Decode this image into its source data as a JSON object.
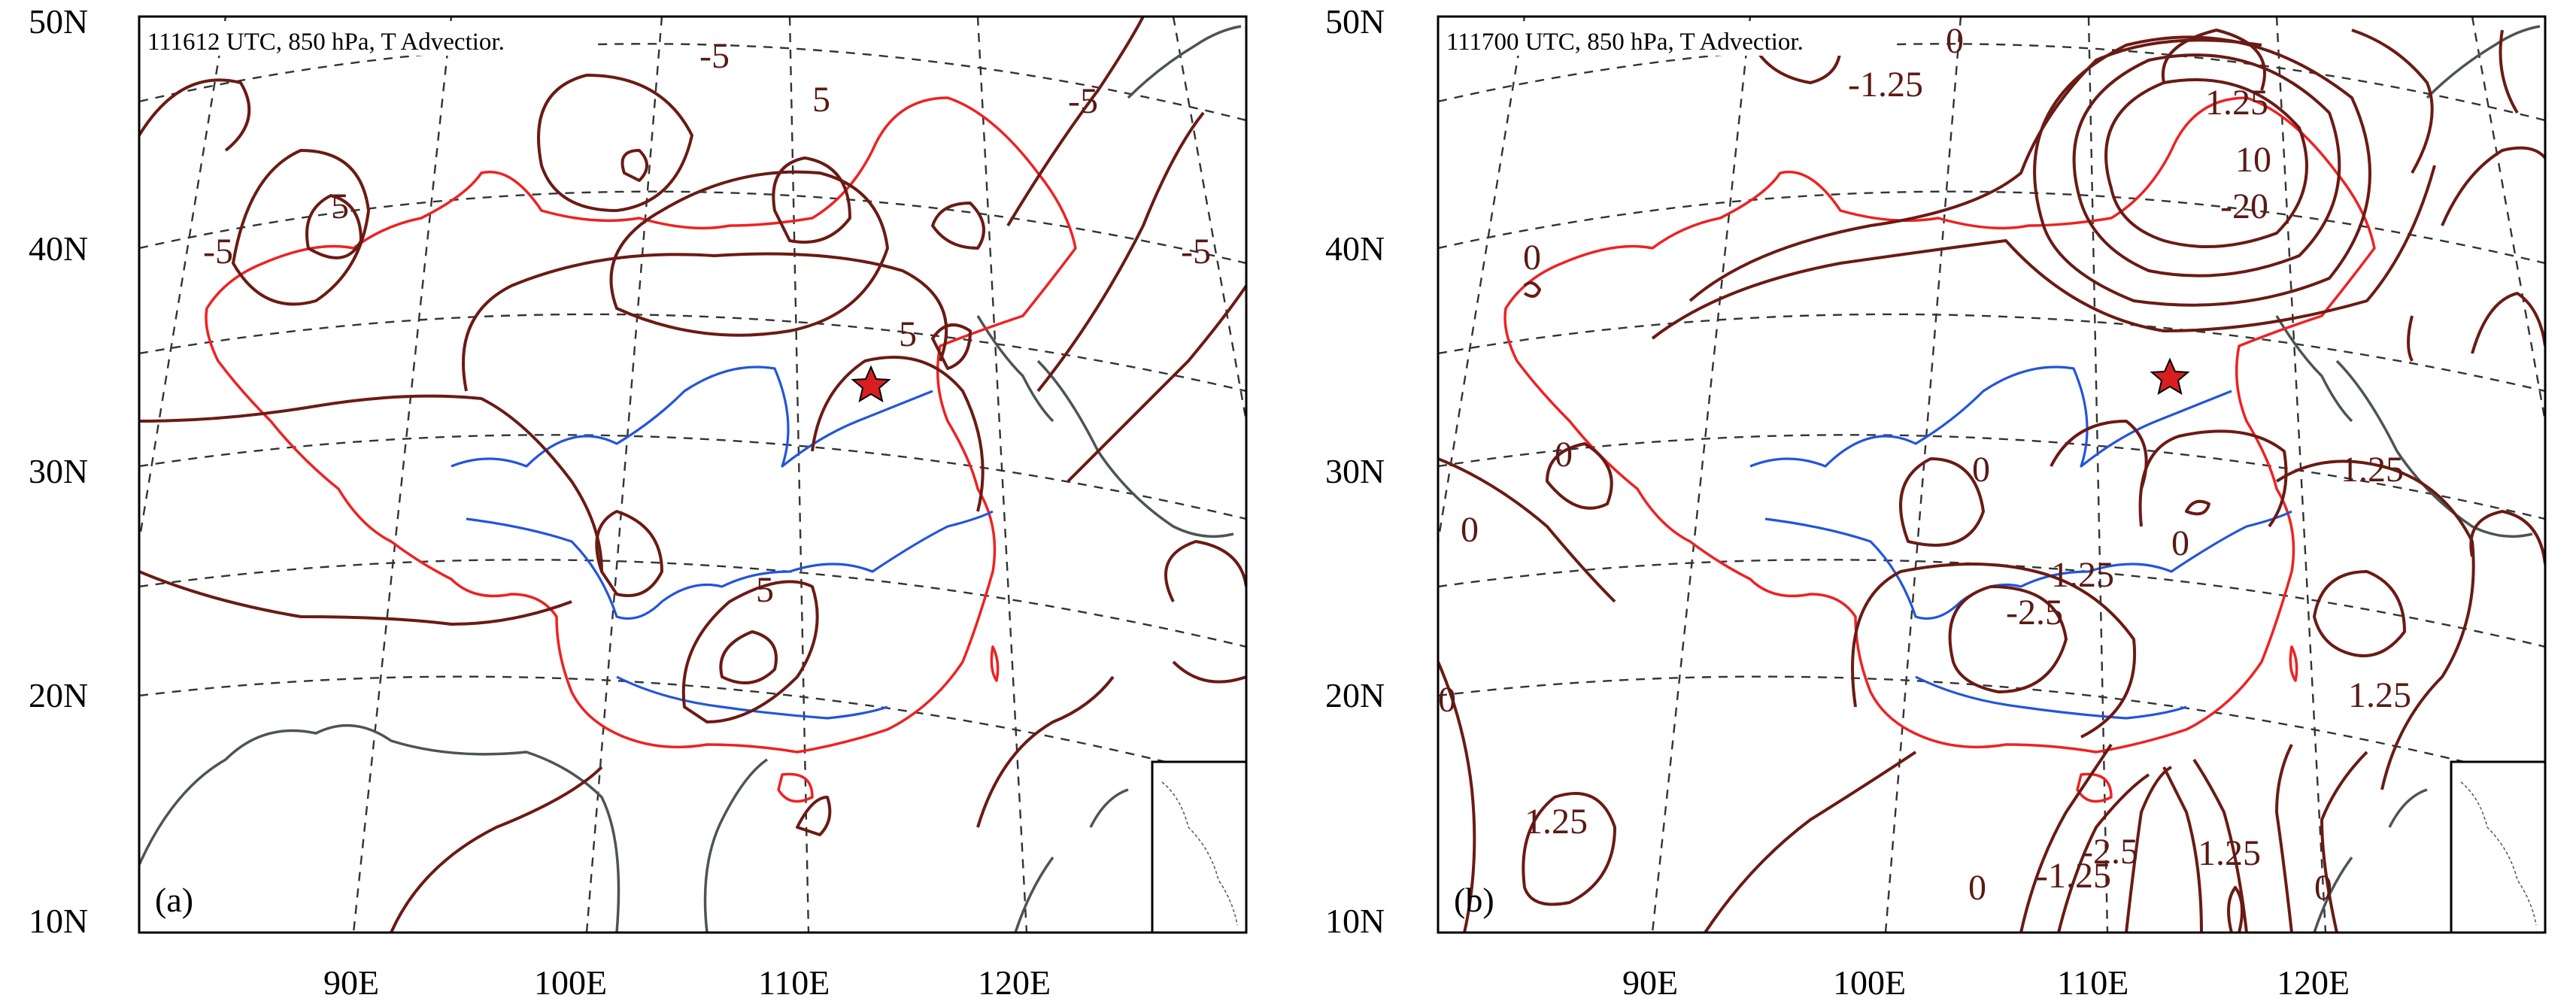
{
  "lat_labels": [
    "50N",
    "40N",
    "30N",
    "20N",
    "10N"
  ],
  "lon_labels": [
    "90E",
    "100E",
    "110E",
    "120E"
  ],
  "panels": [
    {
      "letter": "(a)",
      "title": "111612 UTC, 850 hPa, T Advectior.",
      "contour_labels": [
        "-5",
        "-5",
        "-5",
        "5",
        "-5",
        "5",
        "5",
        "5"
      ]
    },
    {
      "letter": "(b)",
      "title": "111700 UTC, 850 hPa, T Advectior.",
      "contour_labels": [
        "1.25",
        "10",
        "-20",
        "0",
        "-1.25",
        "0",
        "0",
        "0",
        "1.25",
        "1.25",
        "-2.5",
        "0",
        "1.25",
        "1.25",
        "0",
        "0",
        "-1.25",
        "-2.5",
        "1.25",
        "0",
        "0"
      ]
    }
  ],
  "colors": {
    "contour": "#6b1a14",
    "coastline": "#4b5552",
    "china_border": "#ee2222",
    "rivers": "#2255dd",
    "graticule": "#333333",
    "star": "#d81e1e"
  },
  "icons": {
    "marker": "star-icon"
  }
}
